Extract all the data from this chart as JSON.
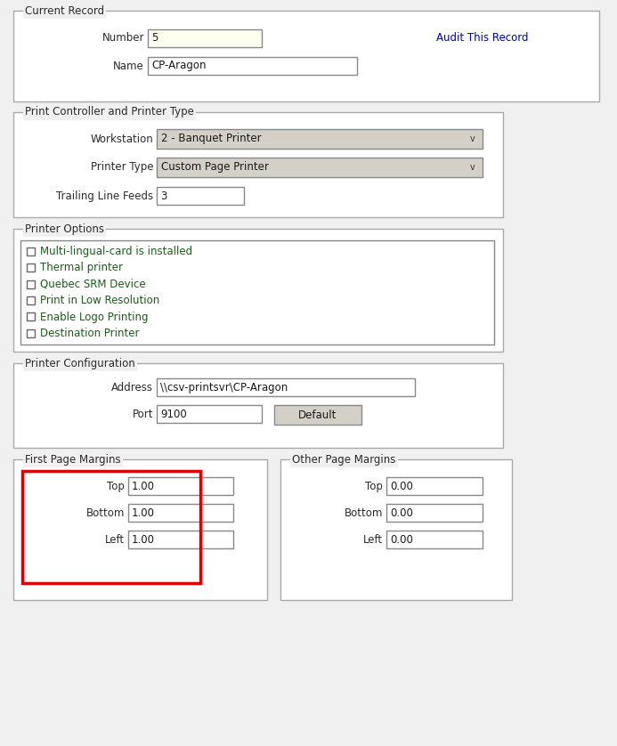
{
  "bg_color": "#f0f0f0",
  "form_bg": "#ffffff",
  "text_color": "#1a1a1a",
  "label_color": "#2a2a2a",
  "link_color": "#0000cc",
  "input_bg": "#ffffff",
  "input_bg_yellow": "#fffff0",
  "input_border": "#888888",
  "dropdown_bg": "#d4d0c8",
  "section_border": "#aaaaaa",
  "red_highlight": "#dd0000",
  "checkbox_border": "#666666",
  "checkbox_text_color": "#1a5c1a",
  "section1_title": "Current Record",
  "number_value": "5",
  "name_value": "CP-Aragon",
  "audit_link": "Audit This Record",
  "section2_title": "Print Controller and Printer Type",
  "workstation_value": "2 - Banquet Printer",
  "printer_type_value": "Custom Page Printer",
  "trailing_feeds_value": "3",
  "section3_title": "Printer Options",
  "checkboxes": [
    "Multi-lingual-card is installed",
    "Thermal printer",
    "Quebec SRM Device",
    "Print in Low Resolution",
    "Enable Logo Printing",
    "Destination Printer"
  ],
  "section4_title": "Printer Configuration",
  "address_value": "\\\\csv-printsvr\\CP-Aragon",
  "port_value": "9100",
  "section5_title": "First Page Margins",
  "first_top": "1.00",
  "first_bottom": "1.00",
  "first_left": "1.00",
  "section6_title": "Other Page Margins",
  "other_top": "0.00",
  "other_bottom": "0.00",
  "other_left": "0.00"
}
